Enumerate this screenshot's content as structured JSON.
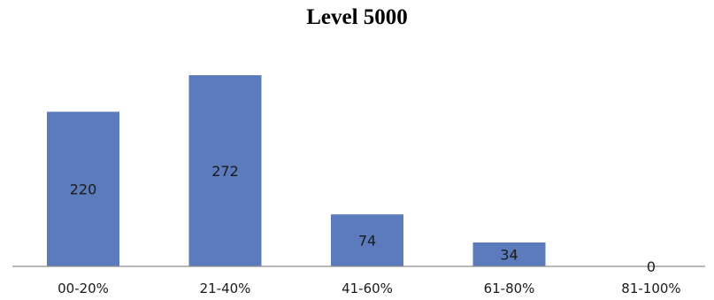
{
  "chart_data": {
    "type": "bar",
    "title": "Level 5000",
    "categories": [
      "00-20%",
      "21-40%",
      "41-60%",
      "61-80%",
      "81-100%"
    ],
    "values": [
      220,
      272,
      74,
      34,
      0
    ],
    "xlabel": "",
    "ylabel": "",
    "ylim": [
      0,
      272
    ],
    "grid": false,
    "legend": "none",
    "colors": {
      "bar": "#5b7bbd",
      "axis": "#8e8e8e",
      "text": "#1a1a1a"
    }
  }
}
